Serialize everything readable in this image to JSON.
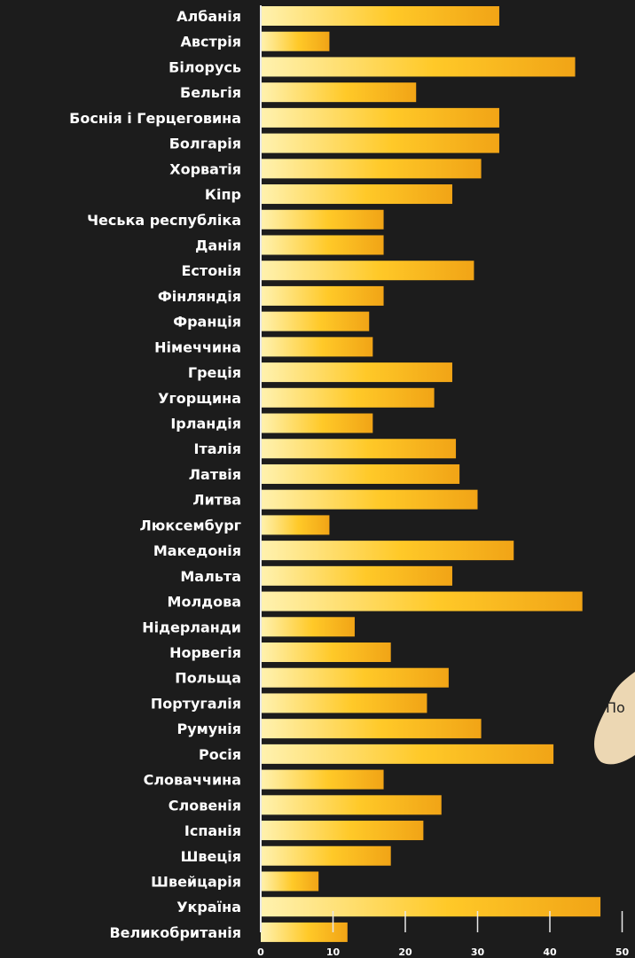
{
  "chart_data": {
    "type": "bar",
    "orientation": "horizontal",
    "categories": [
      "Албанія",
      "Австрія",
      "Білорусь",
      "Бельгія",
      "Боснія і Герцеговина",
      "Болгарія",
      "Хорватія",
      "Кіпр",
      "Чеська республіка",
      "Данія",
      "Естонія",
      "Фінляндія",
      "Франція",
      "Німеччина",
      "Греція",
      "Угорщина",
      "Ірландія",
      "Італія",
      "Латвія",
      "Литва",
      "Люксембург",
      "Македонія",
      "Мальта",
      "Молдова",
      "Нідерланди",
      "Норвегія",
      "Польща",
      "Португалія",
      "Румунія",
      "Росія",
      "Словаччина",
      "Словенія",
      "Іспанія",
      "Швеція",
      "Швейцарія",
      "Україна",
      "Великобританія"
    ],
    "values": [
      33,
      9.5,
      43.5,
      21.5,
      33,
      33,
      30.5,
      26.5,
      17,
      17,
      29.5,
      17,
      15,
      15.5,
      26.5,
      24,
      15.5,
      27,
      27.5,
      30,
      9.5,
      35,
      26.5,
      44.5,
      13,
      18,
      26,
      23,
      30.5,
      40.5,
      17,
      25,
      22.5,
      18,
      8,
      47,
      12
    ],
    "xlim": [
      0,
      50
    ],
    "xticks": [
      "0",
      "10",
      "20",
      "30",
      "40",
      "50"
    ],
    "title": "",
    "xlabel": "",
    "ylabel": "",
    "colors": {
      "bar_start": "#fff2b0",
      "bar_mid": "#ffc928",
      "bar_end": "#f1a416",
      "axis": "#e8e8e8",
      "background": "#1c1c1c",
      "text": "#ffffff"
    },
    "partial_text": "По"
  }
}
